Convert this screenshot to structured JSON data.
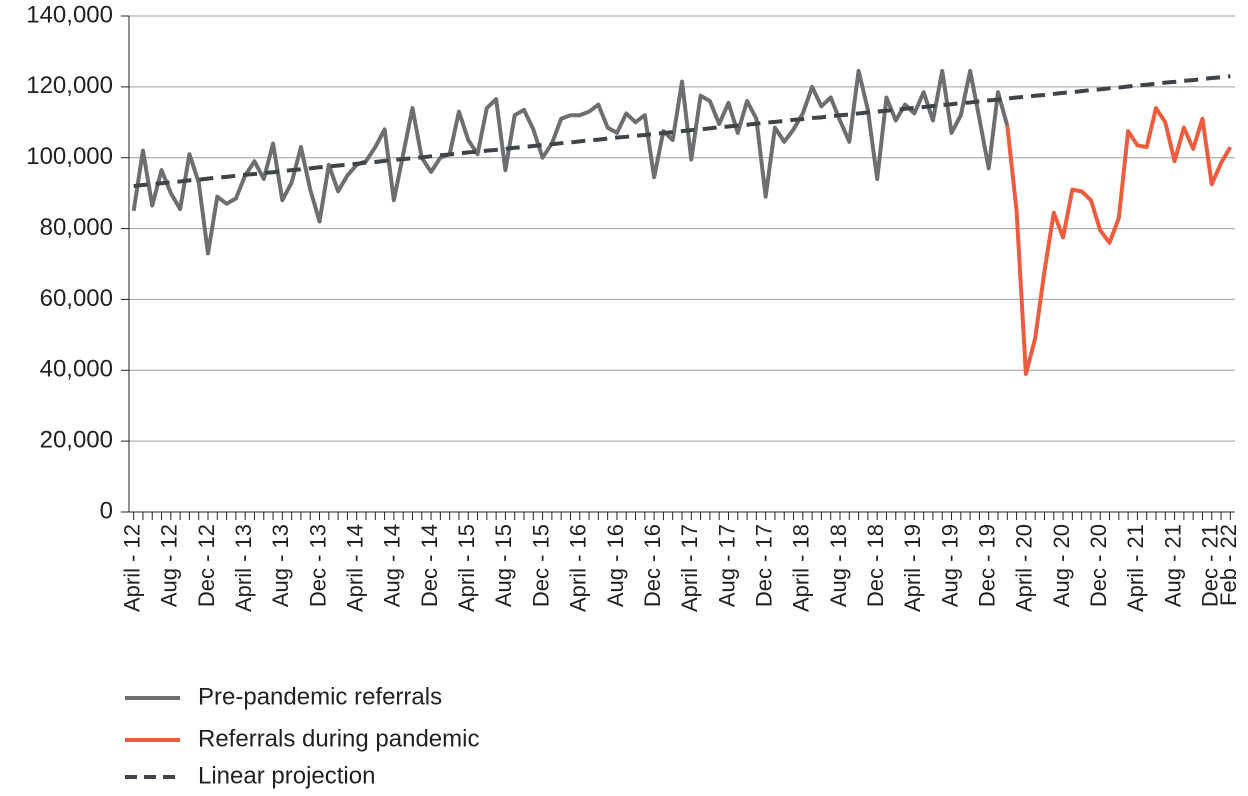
{
  "chart_data": {
    "type": "line",
    "categories": [
      "April - 12",
      null,
      null,
      null,
      "Aug - 12",
      null,
      null,
      null,
      "Dec - 12",
      null,
      null,
      null,
      "April - 13",
      null,
      null,
      null,
      "Aug - 13",
      null,
      null,
      null,
      "Dec - 13",
      null,
      null,
      null,
      "April - 14",
      null,
      null,
      null,
      "Aug - 14",
      null,
      null,
      null,
      "Dec - 14",
      null,
      null,
      null,
      "April - 15",
      null,
      null,
      null,
      "Aug - 15",
      null,
      null,
      null,
      "Dec - 15",
      null,
      null,
      null,
      "April - 16",
      null,
      null,
      null,
      "Aug - 16",
      null,
      null,
      null,
      "Dec - 16",
      null,
      null,
      null,
      "April - 17",
      null,
      null,
      null,
      "Aug - 17",
      null,
      null,
      null,
      "Dec - 17",
      null,
      null,
      null,
      "April - 18",
      null,
      null,
      null,
      "Aug - 18",
      null,
      null,
      null,
      "Dec - 18",
      null,
      null,
      null,
      "April - 19",
      null,
      null,
      null,
      "Aug - 19",
      null,
      null,
      null,
      "Dec - 19",
      null,
      null,
      null,
      "April - 20",
      null,
      null,
      null,
      "Aug - 20",
      null,
      null,
      null,
      "Dec - 20",
      null,
      null,
      null,
      "April - 21",
      null,
      null,
      null,
      "Aug - 21",
      null,
      null,
      null,
      "Dec - 21",
      null,
      "Feb - 22"
    ],
    "series": [
      {
        "name": "Pre-pandemic referrals",
        "color": "#6d6e71",
        "dash": false,
        "values": [
          85000,
          102000,
          86500,
          96500,
          90000,
          85500,
          101000,
          93000,
          73000,
          89000,
          87000,
          88500,
          95000,
          99000,
          94000,
          104000,
          88000,
          93000,
          103000,
          91000,
          82000,
          98000,
          90500,
          95000,
          98000,
          99000,
          103000,
          108000,
          88000,
          101000,
          114000,
          100000,
          96000,
          100000,
          101000,
          113000,
          105000,
          101000,
          114000,
          116500,
          96500,
          112000,
          113500,
          108000,
          100000,
          104000,
          111000,
          112000,
          112000,
          113000,
          115000,
          108500,
          107000,
          112500,
          110000,
          112000,
          94500,
          107500,
          105000,
          121500,
          99500,
          117500,
          116000,
          109500,
          115500,
          107000,
          116000,
          111000,
          89000,
          108500,
          104500,
          108000,
          112500,
          120000,
          114500,
          117000,
          110500,
          104500,
          124500,
          113500,
          94000,
          117000,
          110500,
          115000,
          112500,
          118500,
          110500,
          124500,
          107000,
          112000,
          124500,
          111000,
          97000,
          118500,
          109000,
          null,
          null,
          null,
          null,
          null,
          null,
          null,
          null,
          null,
          null,
          null,
          null,
          null,
          null,
          null,
          null,
          null,
          null,
          null,
          null,
          null,
          null,
          null,
          null
        ]
      },
      {
        "name": "Referrals during pandemic",
        "color": "#ef5b3f",
        "dash": false,
        "values": [
          null,
          null,
          null,
          null,
          null,
          null,
          null,
          null,
          null,
          null,
          null,
          null,
          null,
          null,
          null,
          null,
          null,
          null,
          null,
          null,
          null,
          null,
          null,
          null,
          null,
          null,
          null,
          null,
          null,
          null,
          null,
          null,
          null,
          null,
          null,
          null,
          null,
          null,
          null,
          null,
          null,
          null,
          null,
          null,
          null,
          null,
          null,
          null,
          null,
          null,
          null,
          null,
          null,
          null,
          null,
          null,
          null,
          null,
          null,
          null,
          null,
          null,
          null,
          null,
          null,
          null,
          null,
          null,
          null,
          null,
          null,
          null,
          null,
          null,
          null,
          null,
          null,
          null,
          null,
          null,
          null,
          null,
          null,
          null,
          null,
          null,
          null,
          null,
          null,
          null,
          null,
          null,
          null,
          null,
          109000,
          85000,
          39000,
          49000,
          68000,
          84500,
          77500,
          91000,
          90500,
          88000,
          79500,
          76000,
          83000,
          107500,
          103500,
          103000,
          114000,
          110000,
          99000,
          108500,
          102500,
          111000,
          92500,
          98500,
          103000
        ]
      },
      {
        "name": "Linear projection",
        "color": "#3f4449",
        "dash": true,
        "values": [
          92000,
          92300,
          92500,
          92800,
          93100,
          93300,
          93600,
          93800,
          94100,
          94400,
          94600,
          94900,
          95200,
          95400,
          95700,
          95900,
          96200,
          96500,
          96700,
          97000,
          97300,
          97500,
          97800,
          98000,
          98300,
          98600,
          98800,
          99100,
          99400,
          99600,
          99900,
          100100,
          100400,
          100700,
          100900,
          101200,
          101500,
          101700,
          102000,
          102200,
          102500,
          102800,
          103000,
          103300,
          103600,
          103800,
          104100,
          104300,
          104600,
          104900,
          105100,
          105400,
          105700,
          105900,
          106200,
          106400,
          106700,
          107000,
          107200,
          107500,
          107800,
          108000,
          108300,
          108600,
          108800,
          109100,
          109300,
          109600,
          109900,
          110100,
          110400,
          110700,
          110900,
          111200,
          111400,
          111700,
          112000,
          112200,
          112500,
          112800,
          113000,
          113300,
          113500,
          113800,
          114100,
          114300,
          114600,
          114900,
          115100,
          115400,
          115600,
          115900,
          116200,
          116400,
          116700,
          117000,
          117200,
          117500,
          117700,
          118000,
          118300,
          118500,
          118800,
          119100,
          119300,
          119600,
          119800,
          120100,
          120400,
          120600,
          120900,
          121200,
          121400,
          121700,
          121900,
          122200,
          122500,
          122700,
          123000
        ]
      }
    ],
    "ylim": [
      0,
      140000
    ],
    "yticks": [
      0,
      {
        "value": 20000,
        "label": "20,000"
      },
      {
        "value": 40000,
        "label": "40,000"
      },
      {
        "value": 60000,
        "label": "60,000"
      },
      {
        "value": 80000,
        "label": "80,000"
      },
      {
        "value": 100000,
        "label": "100,000"
      },
      {
        "value": 120000,
        "label": "120,000"
      },
      {
        "value": 140000,
        "label": "140,000"
      }
    ],
    "grid": true
  }
}
